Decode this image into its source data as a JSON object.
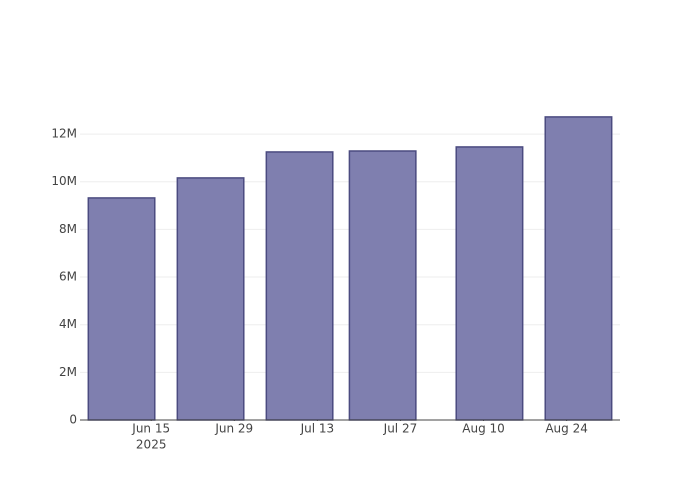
{
  "chart_data": {
    "type": "bar",
    "x": [
      "2025-06-10",
      "2025-06-25",
      "2025-07-10",
      "2025-07-24",
      "2025-08-11",
      "2025-08-26"
    ],
    "values": [
      9320000,
      10160000,
      11250000,
      11290000,
      11460000,
      12720000
    ],
    "color": "#7f7faf",
    "edge_color": "#4b4b80",
    "xlim": [
      "2025-06-03",
      "2025-09-02"
    ],
    "xticks": [
      {
        "value": "2025-06-15",
        "label": "Jun 15"
      },
      {
        "value": "2025-06-29",
        "label": "Jun 29"
      },
      {
        "value": "2025-07-13",
        "label": "Jul 13"
      },
      {
        "value": "2025-07-27",
        "label": "Jul 27"
      },
      {
        "value": "2025-08-10",
        "label": "Aug 10"
      },
      {
        "value": "2025-08-24",
        "label": "Aug 24"
      }
    ],
    "x_year_label": "2025",
    "ylim": [
      0,
      13430000
    ],
    "yticks": [
      0,
      {
        "value": 2000000,
        "label": "2M"
      },
      {
        "value": 4000000,
        "label": "4M"
      },
      {
        "value": 6000000,
        "label": "6M"
      },
      {
        "value": 8000000,
        "label": "8M"
      },
      {
        "value": 10000000,
        "label": "10M"
      },
      {
        "value": 12000000,
        "label": "12M"
      }
    ],
    "grid": true
  }
}
